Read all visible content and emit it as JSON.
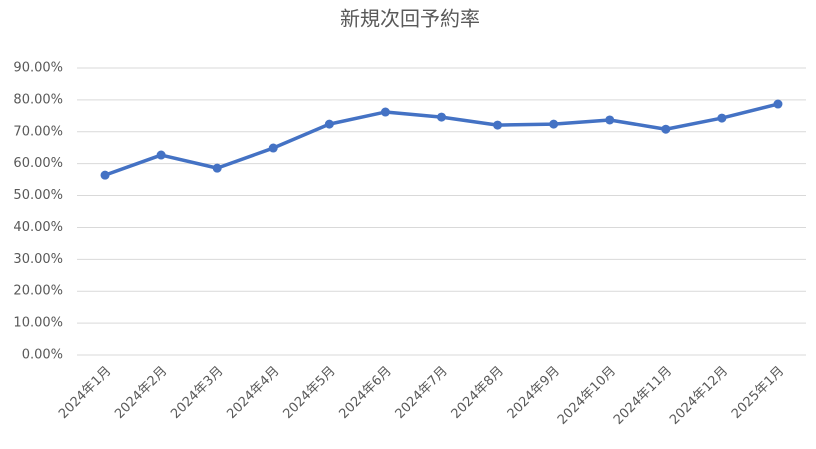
{
  "chart_data": {
    "type": "line",
    "title": "新規次回予約率",
    "categories": [
      "2024年1月",
      "2024年2月",
      "2024年3月",
      "2024年4月",
      "2024年5月",
      "2024年6月",
      "2024年7月",
      "2024年8月",
      "2024年9月",
      "2024年10月",
      "2024年11月",
      "2024年12月",
      "2025年1月"
    ],
    "series": [
      {
        "name": "新規次回予約率",
        "color": "#4472c4",
        "values": [
          56.4,
          62.7,
          58.6,
          64.9,
          72.4,
          76.2,
          74.6,
          72.1,
          72.4,
          73.7,
          70.8,
          74.3,
          78.7
        ]
      }
    ],
    "ylim": [
      0,
      90
    ],
    "yticks": [
      {
        "value": 0,
        "label": "0.00%"
      },
      {
        "value": 10,
        "label": "10.00%"
      },
      {
        "value": 20,
        "label": "20.00%"
      },
      {
        "value": 30,
        "label": "30.00%"
      },
      {
        "value": 40,
        "label": "40.00%"
      },
      {
        "value": 50,
        "label": "50.00%"
      },
      {
        "value": 60,
        "label": "60.00%"
      },
      {
        "value": 70,
        "label": "70.00%"
      },
      {
        "value": 80,
        "label": "80.00%"
      },
      {
        "value": 90,
        "label": "90.00%"
      }
    ],
    "grid": true
  }
}
